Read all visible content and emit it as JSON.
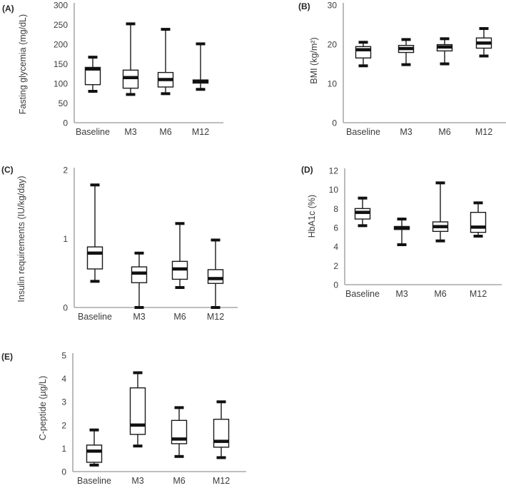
{
  "colors": {
    "box_stroke": "#1a1a1a",
    "box_fill": "#ffffff",
    "median_fill": "#111111",
    "whisker": "#1a1a1a",
    "axis": "#a8a8a8",
    "text": "#3c3c3c",
    "background": "#ffffff"
  },
  "chart_data": [
    {
      "type": "boxplot",
      "panel_label": "(A)",
      "ylabel": "Fasting glycemia (mg/dL)",
      "xlabel": "",
      "categories": [
        "Baseline",
        "M3",
        "M6",
        "M12"
      ],
      "ylim": [
        0,
        300
      ],
      "yticks": [
        0,
        50,
        100,
        150,
        200,
        250,
        300
      ],
      "grid": false,
      "series": [
        {
          "category": "Baseline",
          "low": 80,
          "q1": 97,
          "median": 137,
          "q3": 141,
          "high": 167
        },
        {
          "category": "M3",
          "low": 72,
          "q1": 88,
          "median": 115,
          "q3": 134,
          "high": 252
        },
        {
          "category": "M6",
          "low": 74,
          "q1": 91,
          "median": 110,
          "q3": 128,
          "high": 238
        },
        {
          "category": "M12",
          "low": 85,
          "q1": 101,
          "median": 105,
          "q3": 109,
          "high": 201
        }
      ]
    },
    {
      "type": "boxplot",
      "panel_label": "(B)",
      "ylabel": "BMI (kg/m²)",
      "xlabel": "",
      "categories": [
        "Baseline",
        "M3",
        "M6",
        "M12"
      ],
      "ylim": [
        0,
        30
      ],
      "yticks": [
        0,
        10,
        20,
        30
      ],
      "grid": false,
      "series": [
        {
          "category": "Baseline",
          "low": 14.5,
          "q1": 16.5,
          "median": 18.6,
          "q3": 19.4,
          "high": 20.5
        },
        {
          "category": "M3",
          "low": 14.8,
          "q1": 17.9,
          "median": 18.9,
          "q3": 19.7,
          "high": 21.2
        },
        {
          "category": "M6",
          "low": 15.0,
          "q1": 18.3,
          "median": 19.3,
          "q3": 19.9,
          "high": 21.4
        },
        {
          "category": "M12",
          "low": 17.0,
          "q1": 19.0,
          "median": 20.3,
          "q3": 21.6,
          "high": 24.0
        }
      ]
    },
    {
      "type": "boxplot",
      "panel_label": "(C)",
      "ylabel": "Insulin requirements (IU/kg/day)",
      "xlabel": "",
      "categories": [
        "Baseline",
        "M3",
        "M6",
        "M12"
      ],
      "ylim": [
        0,
        2
      ],
      "yticks": [
        0,
        1,
        2
      ],
      "grid": false,
      "series": [
        {
          "category": "Baseline",
          "low": 0.38,
          "q1": 0.56,
          "median": 0.79,
          "q3": 0.88,
          "high": 1.78
        },
        {
          "category": "M3",
          "low": 0.0,
          "q1": 0.36,
          "median": 0.5,
          "q3": 0.59,
          "high": 0.79
        },
        {
          "category": "M6",
          "low": 0.29,
          "q1": 0.41,
          "median": 0.56,
          "q3": 0.67,
          "high": 1.22
        },
        {
          "category": "M12",
          "low": 0.0,
          "q1": 0.35,
          "median": 0.42,
          "q3": 0.55,
          "high": 0.98
        }
      ]
    },
    {
      "type": "boxplot",
      "panel_label": "(D)",
      "ylabel": "HbA1c (%)",
      "xlabel": "",
      "categories": [
        "Baseline",
        "M3",
        "M6",
        "M12"
      ],
      "ylim": [
        0,
        12
      ],
      "yticks": [
        0,
        2,
        4,
        6,
        8,
        10,
        12
      ],
      "grid": false,
      "series": [
        {
          "category": "Baseline",
          "low": 6.2,
          "q1": 6.9,
          "median": 7.6,
          "q3": 8.0,
          "high": 9.1
        },
        {
          "category": "M3",
          "low": 4.2,
          "q1": 5.8,
          "median": 6.0,
          "q3": 6.1,
          "high": 6.9
        },
        {
          "category": "M6",
          "low": 4.6,
          "q1": 5.6,
          "median": 6.1,
          "q3": 6.6,
          "high": 10.7
        },
        {
          "category": "M12",
          "low": 5.1,
          "q1": 5.5,
          "median": 6.05,
          "q3": 7.6,
          "high": 8.6
        }
      ]
    },
    {
      "type": "boxplot",
      "panel_label": "(E)",
      "ylabel": "C-peptide (µg/L)",
      "xlabel": "",
      "categories": [
        "Baseline",
        "M3",
        "M6",
        "M12"
      ],
      "ylim": [
        0,
        5
      ],
      "yticks": [
        0,
        1,
        2,
        3,
        4,
        5
      ],
      "grid": false,
      "series": [
        {
          "category": "Baseline",
          "low": 0.28,
          "q1": 0.4,
          "median": 0.88,
          "q3": 1.14,
          "high": 1.79
        },
        {
          "category": "M3",
          "low": 1.1,
          "q1": 1.6,
          "median": 2.0,
          "q3": 3.6,
          "high": 4.25
        },
        {
          "category": "M6",
          "low": 0.65,
          "q1": 1.2,
          "median": 1.4,
          "q3": 2.2,
          "high": 2.75
        },
        {
          "category": "M12",
          "low": 0.6,
          "q1": 1.05,
          "median": 1.3,
          "q3": 2.25,
          "high": 3.0
        }
      ]
    }
  ]
}
